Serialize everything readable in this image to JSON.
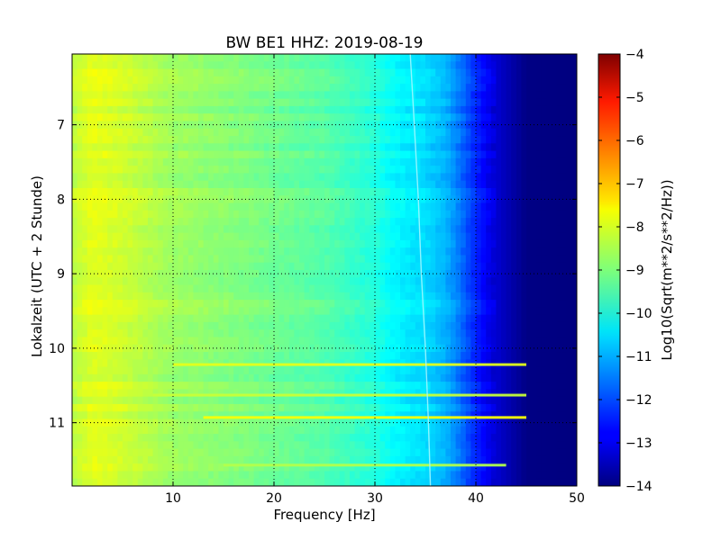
{
  "chart_data": {
    "type": "heatmap",
    "title": "BW BE1 HHZ: 2019-08-19",
    "xlabel": "Frequency [Hz]",
    "ylabel": "Lokalzeit (UTC + 2 Stunde)",
    "xlim": [
      0,
      50
    ],
    "ylim": [
      11.85,
      6.05
    ],
    "xticks": [
      10,
      20,
      30,
      40,
      50
    ],
    "yticks": [
      7,
      8,
      9,
      10,
      11
    ],
    "grid": true,
    "colormap": "jet",
    "colorbar": {
      "label": "Log10(Sqrt(m**2/s**2/Hz))",
      "range": [
        -14,
        -4
      ],
      "ticks": [
        -4,
        -5,
        -6,
        -7,
        -8,
        -9,
        -10,
        -11,
        -12,
        -13,
        -14
      ]
    },
    "frequency_profile": {
      "frequency_hz": [
        0,
        2,
        5,
        10,
        15,
        20,
        25,
        30,
        32,
        35,
        37,
        38,
        40,
        42,
        44,
        45,
        50
      ],
      "value": [
        -8.4,
        -8.0,
        -8.2,
        -8.7,
        -8.9,
        -9.15,
        -9.4,
        -9.9,
        -10.3,
        -10.6,
        -11.0,
        -11.4,
        -12.4,
        -13.2,
        -13.7,
        -13.95,
        -14.0
      ]
    },
    "event_lines": [
      {
        "time_h": 10.22,
        "f_start_hz": 10,
        "f_end_hz": 45,
        "value": -8.0
      },
      {
        "time_h": 10.63,
        "f_start_hz": 8,
        "f_end_hz": 45,
        "value": -8.3
      },
      {
        "time_h": 10.93,
        "f_start_hz": 13,
        "f_end_hz": 45,
        "value": -7.8
      },
      {
        "time_h": 11.57,
        "f_start_hz": 15,
        "f_end_hz": 43,
        "value": -8.5
      }
    ],
    "ridge_line": {
      "time_h": [
        6.05,
        7.0,
        8.0,
        9.0,
        10.0,
        11.0,
        11.85
      ],
      "frequency_hz": [
        33.5,
        33.9,
        34.3,
        34.6,
        35.0,
        35.3,
        35.5
      ]
    }
  }
}
